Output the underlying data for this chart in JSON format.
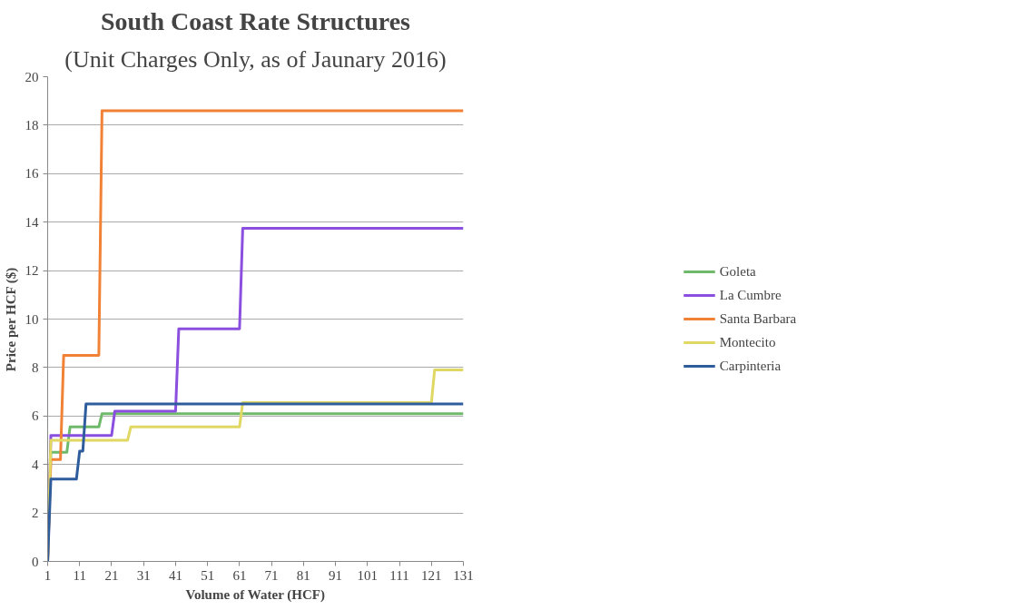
{
  "chart_data": {
    "type": "line",
    "title": "South Coast Rate Structures",
    "subtitle": "(Unit Charges Only, as of Jaunary 2016)",
    "xlabel": "Volume of Water (HCF)",
    "ylabel": "Price per HCF ($)",
    "xlim": [
      1,
      131
    ],
    "xticks": [
      1,
      11,
      21,
      31,
      41,
      51,
      61,
      71,
      81,
      91,
      101,
      111,
      121,
      131
    ],
    "ylim": [
      0,
      20
    ],
    "yticks": [
      0,
      2,
      4,
      6,
      8,
      10,
      12,
      14,
      16,
      18,
      20
    ],
    "grid": "y",
    "legend": "right",
    "marker": "none",
    "line_style": "solid",
    "series": [
      {
        "name": "Goleta",
        "color": "#6fb96b",
        "x": [
          1,
          2,
          7,
          8,
          17,
          18,
          131
        ],
        "values": [
          0,
          4.5,
          4.5,
          5.55,
          5.55,
          6.1,
          6.1
        ]
      },
      {
        "name": "La Cumbre",
        "color": "#8b4fe0",
        "x": [
          1,
          2,
          21,
          22,
          41,
          42,
          61,
          62,
          131
        ],
        "values": [
          0,
          5.2,
          5.2,
          6.2,
          6.2,
          9.6,
          9.6,
          13.75,
          13.75
        ]
      },
      {
        "name": "Santa Barbara",
        "color": "#f08135",
        "x": [
          1,
          2,
          5,
          6,
          17,
          18,
          131
        ],
        "values": [
          0,
          4.2,
          4.2,
          8.5,
          8.5,
          18.6,
          18.6
        ]
      },
      {
        "name": "Montecito",
        "color": "#e0d862",
        "x": [
          1,
          2,
          26,
          27,
          61,
          62,
          121,
          122,
          131
        ],
        "values": [
          0,
          5.0,
          5.0,
          5.55,
          5.55,
          6.55,
          6.55,
          7.9,
          7.9
        ]
      },
      {
        "name": "Carpinteria",
        "color": "#2e5c9c",
        "x": [
          1,
          2,
          10,
          11,
          12,
          13,
          131
        ],
        "values": [
          0,
          3.4,
          3.4,
          4.55,
          4.55,
          6.5,
          6.5
        ]
      }
    ]
  }
}
